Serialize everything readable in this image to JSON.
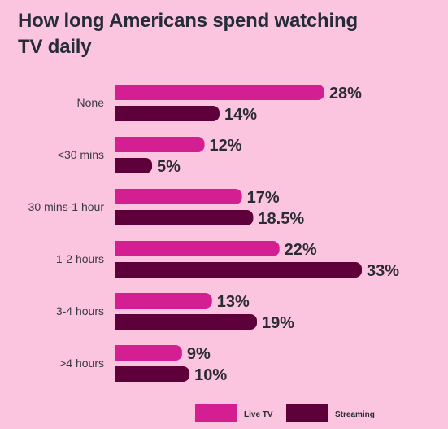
{
  "chart_data": {
    "type": "bar",
    "orientation": "horizontal",
    "title": "How long Americans spend watching TV daily",
    "categories": [
      "None",
      "<30 mins",
      "30 mins-1 hour",
      "1-2 hours",
      "3-4 hours",
      ">4 hours"
    ],
    "series": [
      {
        "name": "Live TV",
        "color": "#d41f92",
        "values": [
          28,
          12,
          17,
          22,
          13,
          9
        ],
        "labels": [
          "28%",
          "12%",
          "17%",
          "22%",
          "13%",
          "9%"
        ]
      },
      {
        "name": "Streaming",
        "color": "#5e0039",
        "values": [
          14,
          5,
          18.5,
          33,
          19,
          10
        ],
        "labels": [
          "14%",
          "5%",
          "18.5%",
          "33%",
          "19%",
          "10%"
        ]
      }
    ],
    "xlim": [
      0,
      33
    ],
    "legend_position": "bottom-right",
    "grid": false
  }
}
